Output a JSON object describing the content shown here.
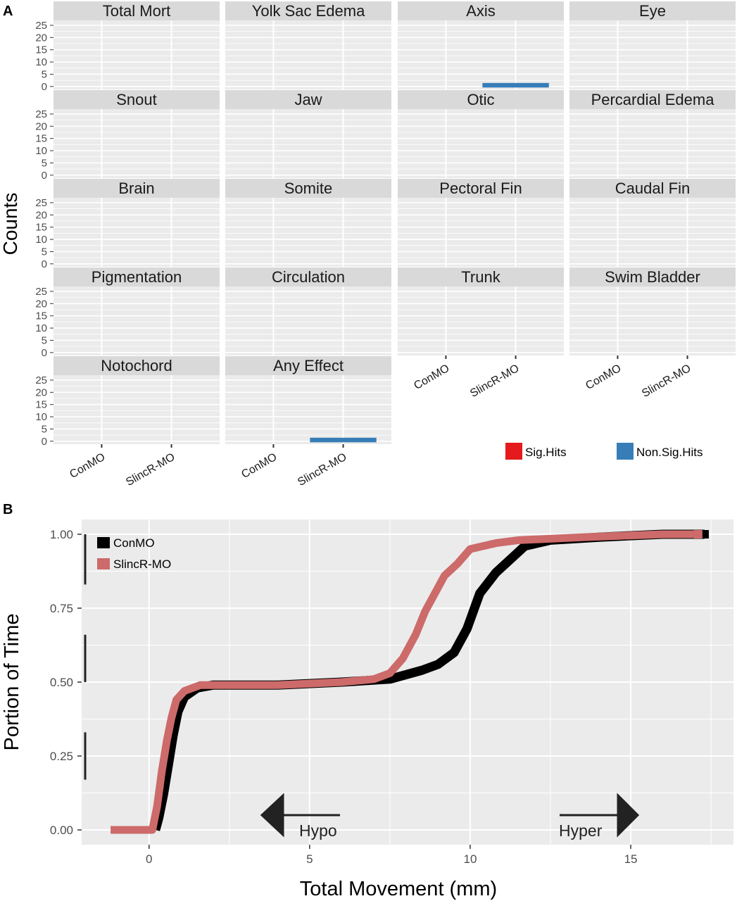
{
  "panel_a": {
    "label": "A",
    "ylabel": "Counts",
    "yticks": [
      "0",
      "5",
      "10",
      "15",
      "20",
      "25"
    ],
    "xticks": [
      "ConMO",
      "SlincR-MO"
    ],
    "facets": [
      "Total Mort",
      "Yolk Sac Edema",
      "Axis",
      "Eye",
      "Snout",
      "Jaw",
      "Otic",
      "Percardial Edema",
      "Brain",
      "Somite",
      "Pectoral Fin",
      "Caudal Fin",
      "Pigmentation",
      "Circulation",
      "Trunk",
      "Swim Bladder",
      "Notochord",
      "Any Effect"
    ],
    "legend": [
      {
        "label": "Sig.Hits",
        "color": "#e41a1c"
      },
      {
        "label": "Non.Sig.Hits",
        "color": "#377eb8"
      }
    ]
  },
  "panel_b": {
    "label": "B",
    "legend": [
      {
        "label": "ConMO",
        "color": "#000000"
      },
      {
        "label": "SlincR-MO",
        "color": "#cd6a6a"
      }
    ],
    "annotations": {
      "left_arrow": "Hypo",
      "right_arrow": "Hyper"
    }
  },
  "chart_data": [
    {
      "type": "bar",
      "title": "",
      "xlabel": "",
      "ylabel": "Counts",
      "ylim": [
        0,
        27
      ],
      "categories": [
        "ConMO",
        "SlincR-MO"
      ],
      "series_names": [
        "Sig.Hits",
        "Non.Sig.Hits"
      ],
      "facets": [
        {
          "name": "Total Mort",
          "values": {
            "ConMO": 0,
            "SlincR-MO": 0
          }
        },
        {
          "name": "Yolk Sac Edema",
          "values": {
            "ConMO": 0,
            "SlincR-MO": 0
          }
        },
        {
          "name": "Axis",
          "values": {
            "ConMO": 0,
            "SlincR-MO": 1
          },
          "series": "Non.Sig.Hits"
        },
        {
          "name": "Eye",
          "values": {
            "ConMO": 0,
            "SlincR-MO": 0
          }
        },
        {
          "name": "Snout",
          "values": {
            "ConMO": 0,
            "SlincR-MO": 0
          }
        },
        {
          "name": "Jaw",
          "values": {
            "ConMO": 0,
            "SlincR-MO": 0
          }
        },
        {
          "name": "Otic",
          "values": {
            "ConMO": 0,
            "SlincR-MO": 0
          }
        },
        {
          "name": "Percardial Edema",
          "values": {
            "ConMO": 0,
            "SlincR-MO": 0
          }
        },
        {
          "name": "Brain",
          "values": {
            "ConMO": 0,
            "SlincR-MO": 0
          }
        },
        {
          "name": "Somite",
          "values": {
            "ConMO": 0,
            "SlincR-MO": 0
          }
        },
        {
          "name": "Pectoral Fin",
          "values": {
            "ConMO": 0,
            "SlincR-MO": 0
          }
        },
        {
          "name": "Caudal Fin",
          "values": {
            "ConMO": 0,
            "SlincR-MO": 0
          }
        },
        {
          "name": "Pigmentation",
          "values": {
            "ConMO": 0,
            "SlincR-MO": 0
          }
        },
        {
          "name": "Circulation",
          "values": {
            "ConMO": 0,
            "SlincR-MO": 0
          }
        },
        {
          "name": "Trunk",
          "values": {
            "ConMO": 0,
            "SlincR-MO": 0
          }
        },
        {
          "name": "Swim Bladder",
          "values": {
            "ConMO": 0,
            "SlincR-MO": 0
          }
        },
        {
          "name": "Notochord",
          "values": {
            "ConMO": 0,
            "SlincR-MO": 0
          }
        },
        {
          "name": "Any Effect",
          "values": {
            "ConMO": 0,
            "SlincR-MO": 1
          },
          "series": "Non.Sig.Hits"
        }
      ]
    },
    {
      "type": "line",
      "title": "",
      "xlabel": "Total Movement (mm)",
      "ylabel": "Portion of Time",
      "xlim": [
        -2.1,
        18.2
      ],
      "ylim": [
        -0.05,
        1.05
      ],
      "xticks": [
        0,
        5,
        10,
        15
      ],
      "yticks": [
        0.0,
        0.25,
        0.5,
        0.75,
        1.0
      ],
      "ytick_labels": [
        "0.00",
        "0.25",
        "0.50",
        "0.75",
        "1.00"
      ],
      "rug_y": [
        [
          0.17,
          0.33
        ],
        [
          0.5,
          0.66
        ],
        [
          0.83,
          1.0
        ]
      ],
      "series": [
        {
          "name": "ConMO",
          "color": "#000000",
          "points": [
            [
              0.2,
              0.0
            ],
            [
              0.3,
              0.04
            ],
            [
              0.45,
              0.12
            ],
            [
              0.6,
              0.22
            ],
            [
              0.75,
              0.32
            ],
            [
              0.9,
              0.4
            ],
            [
              1.1,
              0.45
            ],
            [
              1.5,
              0.48
            ],
            [
              2.0,
              0.49
            ],
            [
              4.0,
              0.49
            ],
            [
              6.0,
              0.5
            ],
            [
              7.5,
              0.51
            ],
            [
              8.5,
              0.54
            ],
            [
              9.0,
              0.56
            ],
            [
              9.5,
              0.6
            ],
            [
              9.9,
              0.68
            ],
            [
              10.3,
              0.8
            ],
            [
              10.8,
              0.87
            ],
            [
              11.3,
              0.92
            ],
            [
              11.7,
              0.96
            ],
            [
              12.5,
              0.98
            ],
            [
              14.0,
              0.99
            ],
            [
              16.0,
              1.0
            ],
            [
              17.3,
              1.0
            ]
          ]
        },
        {
          "name": "SlincR-MO",
          "color": "#cd6a6a",
          "points": [
            [
              -1.2,
              0.0
            ],
            [
              0.1,
              0.0
            ],
            [
              0.25,
              0.08
            ],
            [
              0.4,
              0.2
            ],
            [
              0.55,
              0.3
            ],
            [
              0.7,
              0.38
            ],
            [
              0.85,
              0.44
            ],
            [
              1.1,
              0.47
            ],
            [
              1.6,
              0.49
            ],
            [
              4.0,
              0.49
            ],
            [
              6.0,
              0.5
            ],
            [
              7.0,
              0.51
            ],
            [
              7.5,
              0.53
            ],
            [
              7.9,
              0.58
            ],
            [
              8.3,
              0.66
            ],
            [
              8.6,
              0.74
            ],
            [
              8.9,
              0.8
            ],
            [
              9.2,
              0.86
            ],
            [
              9.6,
              0.9
            ],
            [
              10.0,
              0.95
            ],
            [
              10.8,
              0.97
            ],
            [
              11.5,
              0.98
            ],
            [
              13.5,
              0.99
            ],
            [
              16.0,
              1.0
            ],
            [
              17.1,
              1.0
            ]
          ]
        }
      ]
    }
  ]
}
